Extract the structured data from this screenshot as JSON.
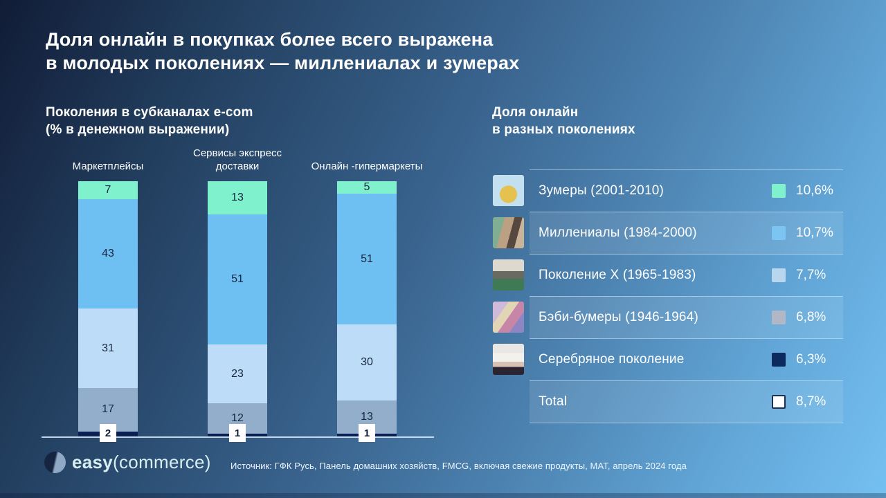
{
  "slide": {
    "title_line1": "Доля онлайн в покупках более всего выражена",
    "title_line2": "в молодых поколениях — миллениалах и зумерах"
  },
  "left_section": {
    "heading_line1": "Поколения в субканалах e-com",
    "heading_line2": "(% в денежном выражении)"
  },
  "chart_data": {
    "type": "bar",
    "stacked": true,
    "unit": "%",
    "title": "Поколения в субканалах e-com (% в денежном выражении)",
    "categories": [
      "Маркетплейсы",
      "Сервисы экспресс доставки",
      "Онлайн -гипермаркеты"
    ],
    "series": [
      {
        "name": "Зумеры",
        "color": "#80f1cd",
        "values": [
          7,
          13,
          5
        ]
      },
      {
        "name": "Миллениалы",
        "color": "#6fc0f2",
        "values": [
          43,
          51,
          51
        ]
      },
      {
        "name": "Поколение X",
        "color": "#bcdcf7",
        "values": [
          31,
          23,
          30
        ]
      },
      {
        "name": "Бэби-бумеры",
        "color": "#92aecb",
        "values": [
          17,
          12,
          13
        ]
      },
      {
        "name": "Серебряное поколение",
        "color": "#0a2052",
        "values": [
          2,
          1,
          1
        ]
      }
    ],
    "value_labels_visible": true,
    "total_per_category": 100,
    "legend_position": "none"
  },
  "right_table": {
    "heading_line1": "Доля онлайн",
    "heading_line2": "в разных поколениях",
    "rows": [
      {
        "label": "Зумеры (2001-2010)",
        "value": "10,6%",
        "color": "#80f1cd",
        "avatar": "zoomer-photo",
        "band": false,
        "outlined": false
      },
      {
        "label": "Миллениалы (1984-2000)",
        "value": "10,7%",
        "color": "#7cc4f2",
        "avatar": "millennials-photo",
        "band": true,
        "outlined": false
      },
      {
        "label": "Поколение X (1965-1983)",
        "value": "7,7%",
        "color": "#b9d6ef",
        "avatar": "generation-x-photo",
        "band": false,
        "outlined": false
      },
      {
        "label": "Бэби-бумеры (1946-1964)",
        "value": "6,8%",
        "color": "#b2b7c6",
        "avatar": "baby-boomers-photo",
        "band": true,
        "outlined": false
      },
      {
        "label": "Серебряное поколение",
        "value": "6,3%",
        "color": "#0d2a5e",
        "avatar": "silver-generation-photo",
        "band": false,
        "outlined": false
      },
      {
        "label": "Total",
        "value": "8,7%",
        "color": "#ffffff",
        "avatar": null,
        "band": true,
        "outlined": true
      }
    ]
  },
  "footer": {
    "logo_word1": "easy",
    "logo_word2": "(commerce)",
    "source": "Источник: ГФК Русь, Панель домашних хозяйств, FMCG, включая свежие продукты, MAT, апрель 2024 года"
  }
}
